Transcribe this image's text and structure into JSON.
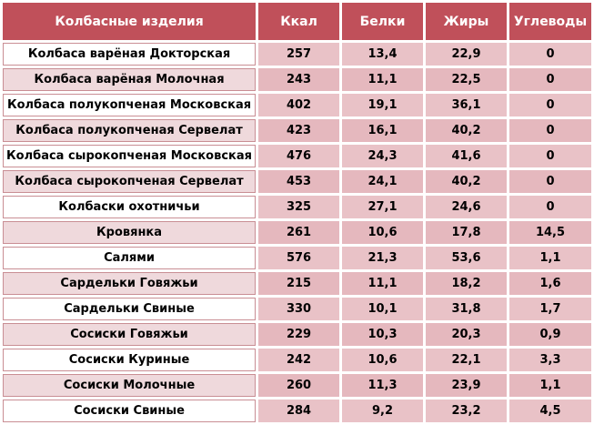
{
  "table": {
    "headers": [
      "Колбасные изделия",
      "Ккал",
      "Белки",
      "Жиры",
      "Углеводы"
    ],
    "rows": [
      [
        "Колбаса варёная Докторская",
        "257",
        "13,4",
        "22,9",
        "0"
      ],
      [
        "Колбаса варёная Молочная",
        "243",
        "11,1",
        "22,5",
        "0"
      ],
      [
        "Колбаса полукопченая Московская",
        "402",
        "19,1",
        "36,1",
        "0"
      ],
      [
        "Колбаса полукопченая Сервелат",
        "423",
        "16,1",
        "40,2",
        "0"
      ],
      [
        "Колбаса сырокопченая Московская",
        "476",
        "24,3",
        "41,6",
        "0"
      ],
      [
        "Колбаса сырокопченая Сервелат",
        "453",
        "24,1",
        "40,2",
        "0"
      ],
      [
        "Колбаски охотничьи",
        "325",
        "27,1",
        "24,6",
        "0"
      ],
      [
        "Кровянка",
        "261",
        "10,6",
        "17,8",
        "14,5"
      ],
      [
        "Салями",
        "576",
        "21,3",
        "53,6",
        "1,1"
      ],
      [
        "Сардельки Говяжьи",
        "215",
        "11,1",
        "18,2",
        "1,6"
      ],
      [
        "Сардельки Свиные",
        "330",
        "10,1",
        "31,8",
        "1,7"
      ],
      [
        "Сосиски Говяжьи",
        "229",
        "10,3",
        "20,3",
        "0,9"
      ],
      [
        "Сосиски Куриные",
        "242",
        "10,6",
        "22,1",
        "3,3"
      ],
      [
        "Сосиски Молочные",
        "260",
        "11,3",
        "23,9",
        "1,1"
      ],
      [
        "Сосиски Свиные",
        "284",
        "9,2",
        "23,2",
        "4,5"
      ]
    ]
  },
  "colors": {
    "header_bg": "#c0505a",
    "header_text": "#ffffff",
    "value_cell_bg": "#e9c2c7",
    "name_cell_alt_bg": "#efd9dc"
  }
}
